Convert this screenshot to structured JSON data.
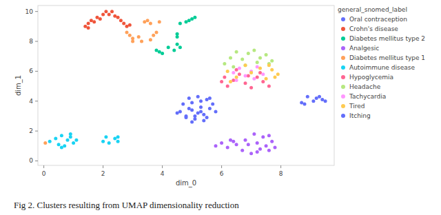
{
  "chart_data": {
    "type": "scatter",
    "caption": "Fig 2. Clusters resulting from UMAP dimensionality reduction",
    "x_label": "dim_0",
    "y_label": "dim_1",
    "legend_title": "general_snomed_label",
    "legend": "right",
    "grid": false,
    "marker": "circle",
    "xlim": [
      -0.2,
      9.8
    ],
    "xticks": [
      0,
      2,
      4,
      6,
      8
    ],
    "ylim": [
      -0.3,
      10.4
    ],
    "yticks": [
      0,
      2,
      4,
      6,
      8,
      10
    ],
    "series": [
      {
        "name": "Oral contraception",
        "color": "#636efa",
        "x": [
          4.6,
          4.7,
          4.8,
          4.9,
          5.0,
          5.1,
          5.2,
          5.3,
          5.4,
          5.5,
          5.6,
          5.7,
          5.8,
          4.5,
          4.8,
          5.0,
          5.2,
          5.4,
          5.6,
          4.9,
          5.1,
          5.3,
          5.5,
          5.0,
          5.3
        ],
        "values": [
          3.3,
          3.8,
          3.0,
          4.2,
          3.4,
          2.8,
          4.3,
          3.6,
          3.1,
          4.1,
          3.5,
          3.8,
          3.3,
          3.2,
          2.9,
          3.9,
          3.2,
          2.7,
          4.2,
          3.5,
          3.0,
          4.0,
          2.9,
          2.6,
          3.3
        ]
      },
      {
        "name": "Crohn's disease",
        "color": "#EF553B",
        "x": [
          1.4,
          1.5,
          1.6,
          1.7,
          1.8,
          1.9,
          2.0,
          2.1,
          2.2,
          2.3,
          2.4,
          2.5,
          2.6,
          2.7,
          2.8,
          2.9,
          1.5
        ],
        "values": [
          9.0,
          9.2,
          9.4,
          9.3,
          9.6,
          9.5,
          9.8,
          10.0,
          9.8,
          10.0,
          9.7,
          9.6,
          9.4,
          9.2,
          9.0,
          9.1,
          8.9
        ]
      },
      {
        "name": "Diabetes mellitus type 2",
        "color": "#00cc96",
        "x": [
          3.8,
          3.9,
          4.0,
          4.2,
          4.4,
          4.5,
          4.6,
          4.5,
          4.5,
          4.6,
          4.8,
          4.9,
          5.0,
          5.1
        ],
        "values": [
          7.4,
          7.3,
          7.2,
          7.6,
          7.4,
          7.8,
          7.6,
          8.3,
          8.5,
          9.2,
          9.3,
          9.4,
          9.5,
          9.6
        ]
      },
      {
        "name": "Analgesic",
        "color": "#ab63fa",
        "x": [
          5.8,
          6.0,
          6.2,
          6.4,
          6.5,
          6.7,
          6.8,
          7.0,
          7.1,
          7.2,
          7.3,
          7.4,
          7.5,
          7.6,
          7.7,
          7.8,
          6.3,
          6.9,
          7.2,
          7.6
        ],
        "values": [
          1.0,
          1.2,
          0.9,
          1.3,
          1.1,
          0.7,
          1.4,
          0.5,
          1.8,
          1.2,
          0.8,
          1.6,
          1.0,
          0.7,
          1.3,
          0.9,
          1.4,
          1.1,
          0.6,
          1.7
        ]
      },
      {
        "name": "Diabetes mellitus type 1",
        "color": "#FFA15A",
        "x": [
          2.8,
          2.9,
          3.0,
          3.0,
          3.2,
          3.3,
          3.4,
          3.5,
          3.6,
          3.7,
          3.8,
          3.9,
          3.6,
          0.05
        ],
        "values": [
          8.6,
          8.4,
          8.2,
          8.0,
          8.3,
          8.0,
          9.3,
          9.4,
          9.2,
          8.4,
          8.6,
          9.3,
          8.1,
          1.2
        ]
      },
      {
        "name": "Autoimmune disease",
        "color": "#19d3f3",
        "x": [
          0.2,
          0.4,
          0.5,
          0.6,
          0.7,
          0.8,
          0.9,
          1.0,
          1.1,
          0.6,
          0.9,
          2.0,
          2.1,
          2.2,
          2.4,
          2.5,
          2.5
        ],
        "values": [
          1.3,
          1.5,
          1.1,
          1.7,
          1.0,
          1.4,
          1.6,
          1.2,
          1.4,
          0.9,
          1.8,
          1.3,
          1.6,
          1.2,
          1.5,
          1.3,
          1.6
        ]
      },
      {
        "name": "Hypoglycemia",
        "color": "#FF6692",
        "x": [
          6.0,
          6.2,
          6.4,
          6.6,
          6.8,
          7.0,
          7.2,
          7.4,
          7.6,
          6.5,
          6.9,
          7.3,
          6.1
        ],
        "values": [
          5.3,
          5.0,
          5.4,
          5.8,
          5.2,
          4.9,
          5.6,
          5.3,
          5.0,
          6.1,
          5.7,
          5.9,
          5.6
        ]
      },
      {
        "name": "Headache",
        "color": "#B6E880",
        "x": [
          6.1,
          6.3,
          6.5,
          6.7,
          6.9,
          7.1,
          7.3,
          7.5,
          7.7,
          6.4,
          6.8,
          7.2,
          7.6
        ],
        "values": [
          6.5,
          6.9,
          7.3,
          6.8,
          7.2,
          7.4,
          6.9,
          7.1,
          6.7,
          6.3,
          6.4,
          6.6,
          6.5
        ]
      },
      {
        "name": "Tachycardia",
        "color": "#FF97FF",
        "x": [
          6.4,
          6.6,
          6.8,
          7.0,
          7.2,
          7.4,
          6.5,
          7.1
        ],
        "values": [
          5.9,
          6.2,
          5.7,
          6.0,
          6.3,
          5.8,
          5.4,
          5.5
        ]
      },
      {
        "name": "Tired",
        "color": "#FECB52",
        "x": [
          6.2,
          6.5,
          6.8,
          7.0,
          7.3,
          7.5,
          7.7,
          7.9,
          6.3,
          7.6,
          7.8
        ],
        "values": [
          6.0,
          5.6,
          6.4,
          5.9,
          6.2,
          5.5,
          6.1,
          5.8,
          5.3,
          6.4,
          5.6
        ]
      },
      {
        "name": "Itching",
        "color": "#636efa",
        "x": [
          8.7,
          8.9,
          9.1,
          9.2,
          9.4,
          9.5,
          8.8,
          9.3
        ],
        "values": [
          3.9,
          4.3,
          4.0,
          4.2,
          4.1,
          4.0,
          3.8,
          4.3
        ]
      }
    ]
  }
}
